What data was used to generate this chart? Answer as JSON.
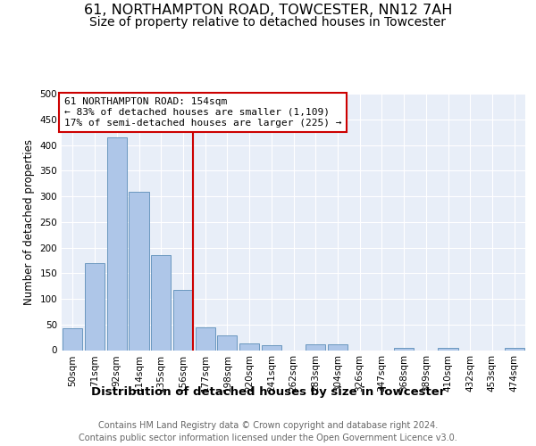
{
  "title": "61, NORTHAMPTON ROAD, TOWCESTER, NN12 7AH",
  "subtitle": "Size of property relative to detached houses in Towcester",
  "xlabel": "Distribution of detached houses by size in Towcester",
  "ylabel": "Number of detached properties",
  "categories": [
    "50sqm",
    "71sqm",
    "92sqm",
    "114sqm",
    "135sqm",
    "156sqm",
    "177sqm",
    "198sqm",
    "220sqm",
    "241sqm",
    "262sqm",
    "283sqm",
    "304sqm",
    "326sqm",
    "347sqm",
    "368sqm",
    "389sqm",
    "410sqm",
    "432sqm",
    "453sqm",
    "474sqm"
  ],
  "values": [
    42,
    170,
    415,
    308,
    185,
    118,
    45,
    28,
    13,
    10,
    0,
    11,
    11,
    0,
    0,
    5,
    0,
    5,
    0,
    0,
    4
  ],
  "bar_color": "#aec6e8",
  "bar_edge_color": "#5b8db8",
  "background_color": "#e8eef8",
  "grid_color": "#ffffff",
  "vline_color": "#cc0000",
  "vline_index": 5,
  "annotation_text": "61 NORTHAMPTON ROAD: 154sqm\n← 83% of detached houses are smaller (1,109)\n17% of semi-detached houses are larger (225) →",
  "annotation_box_color": "#ffffff",
  "annotation_box_edge": "#cc0000",
  "footer_text": "Contains HM Land Registry data © Crown copyright and database right 2024.\nContains public sector information licensed under the Open Government Licence v3.0.",
  "ylim": [
    0,
    500
  ],
  "yticks": [
    0,
    50,
    100,
    150,
    200,
    250,
    300,
    350,
    400,
    450,
    500
  ],
  "title_fontsize": 11.5,
  "subtitle_fontsize": 10,
  "xlabel_fontsize": 9.5,
  "ylabel_fontsize": 8.5,
  "tick_fontsize": 7.5,
  "annotation_fontsize": 8,
  "footer_fontsize": 7
}
